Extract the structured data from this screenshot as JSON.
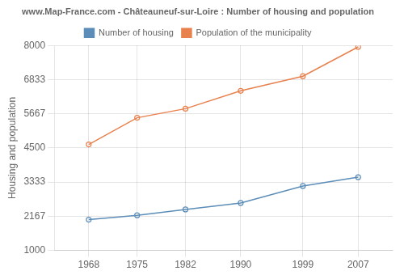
{
  "chart_data": {
    "type": "line",
    "title": "www.Map-France.com - Châteauneuf-sur-Loire : Number of housing and population",
    "ylabel": "Housing and population",
    "x": [
      1968,
      1975,
      1982,
      1990,
      1999,
      2007
    ],
    "series": [
      {
        "name": "Number of housing",
        "color": "#5b8db8",
        "values": [
          2050,
          2200,
          2400,
          2620,
          3200,
          3500
        ]
      },
      {
        "name": "Population of the municipality",
        "color": "#e8814d",
        "values": [
          4620,
          5530,
          5840,
          6450,
          6950,
          7950
        ]
      }
    ],
    "marker": "circle",
    "xlim": [
      1963,
      2012
    ],
    "xticks": [
      1968,
      1975,
      1982,
      1990,
      1999,
      2007
    ],
    "ylim": [
      1000,
      8000
    ],
    "yticks": [
      1000,
      2167,
      3333,
      4500,
      5667,
      6833,
      8000
    ],
    "grid": true,
    "legend": "top"
  }
}
